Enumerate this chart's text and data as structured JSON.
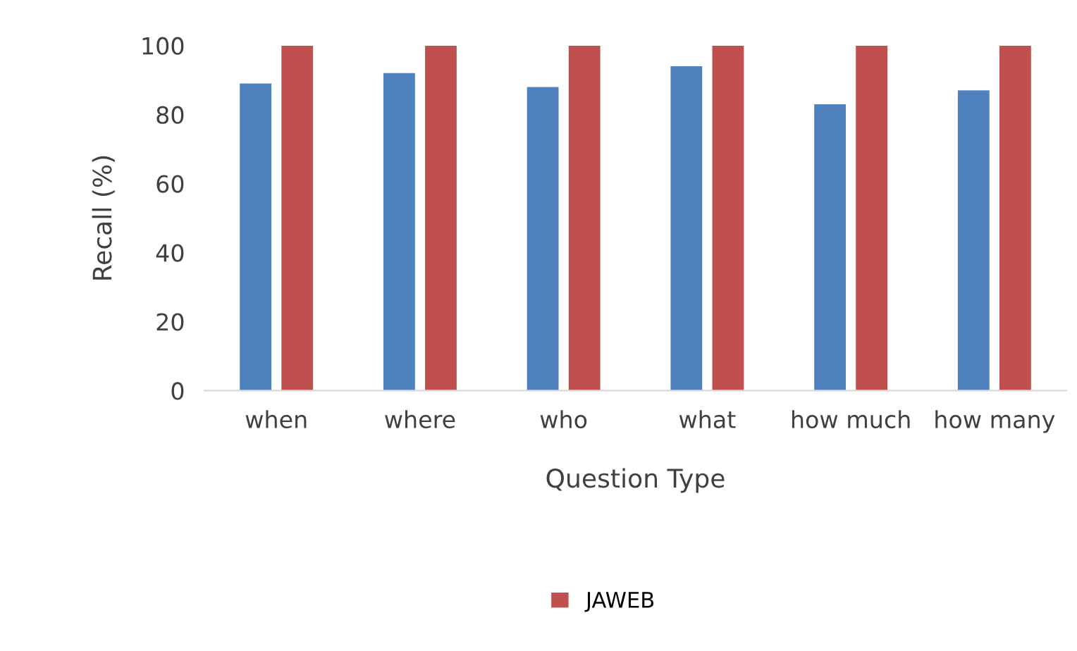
{
  "chart_data": {
    "type": "bar",
    "xlabel": "Question Type",
    "ylabel": "Recall (%)",
    "categories": [
      "when",
      "where",
      "who",
      "what",
      "how much",
      "how many"
    ],
    "series": [
      {
        "color": "#4f81bd",
        "values": [
          89,
          92,
          88,
          94,
          83,
          87
        ]
      },
      {
        "name": "JAWEB",
        "color": "#c0504d",
        "values": [
          100,
          100,
          100,
          100,
          100,
          100
        ]
      }
    ],
    "ylim": [
      0,
      100
    ],
    "yticks": [
      0,
      20,
      40,
      60,
      80,
      100
    ],
    "grid": false,
    "legend": "bottom"
  }
}
